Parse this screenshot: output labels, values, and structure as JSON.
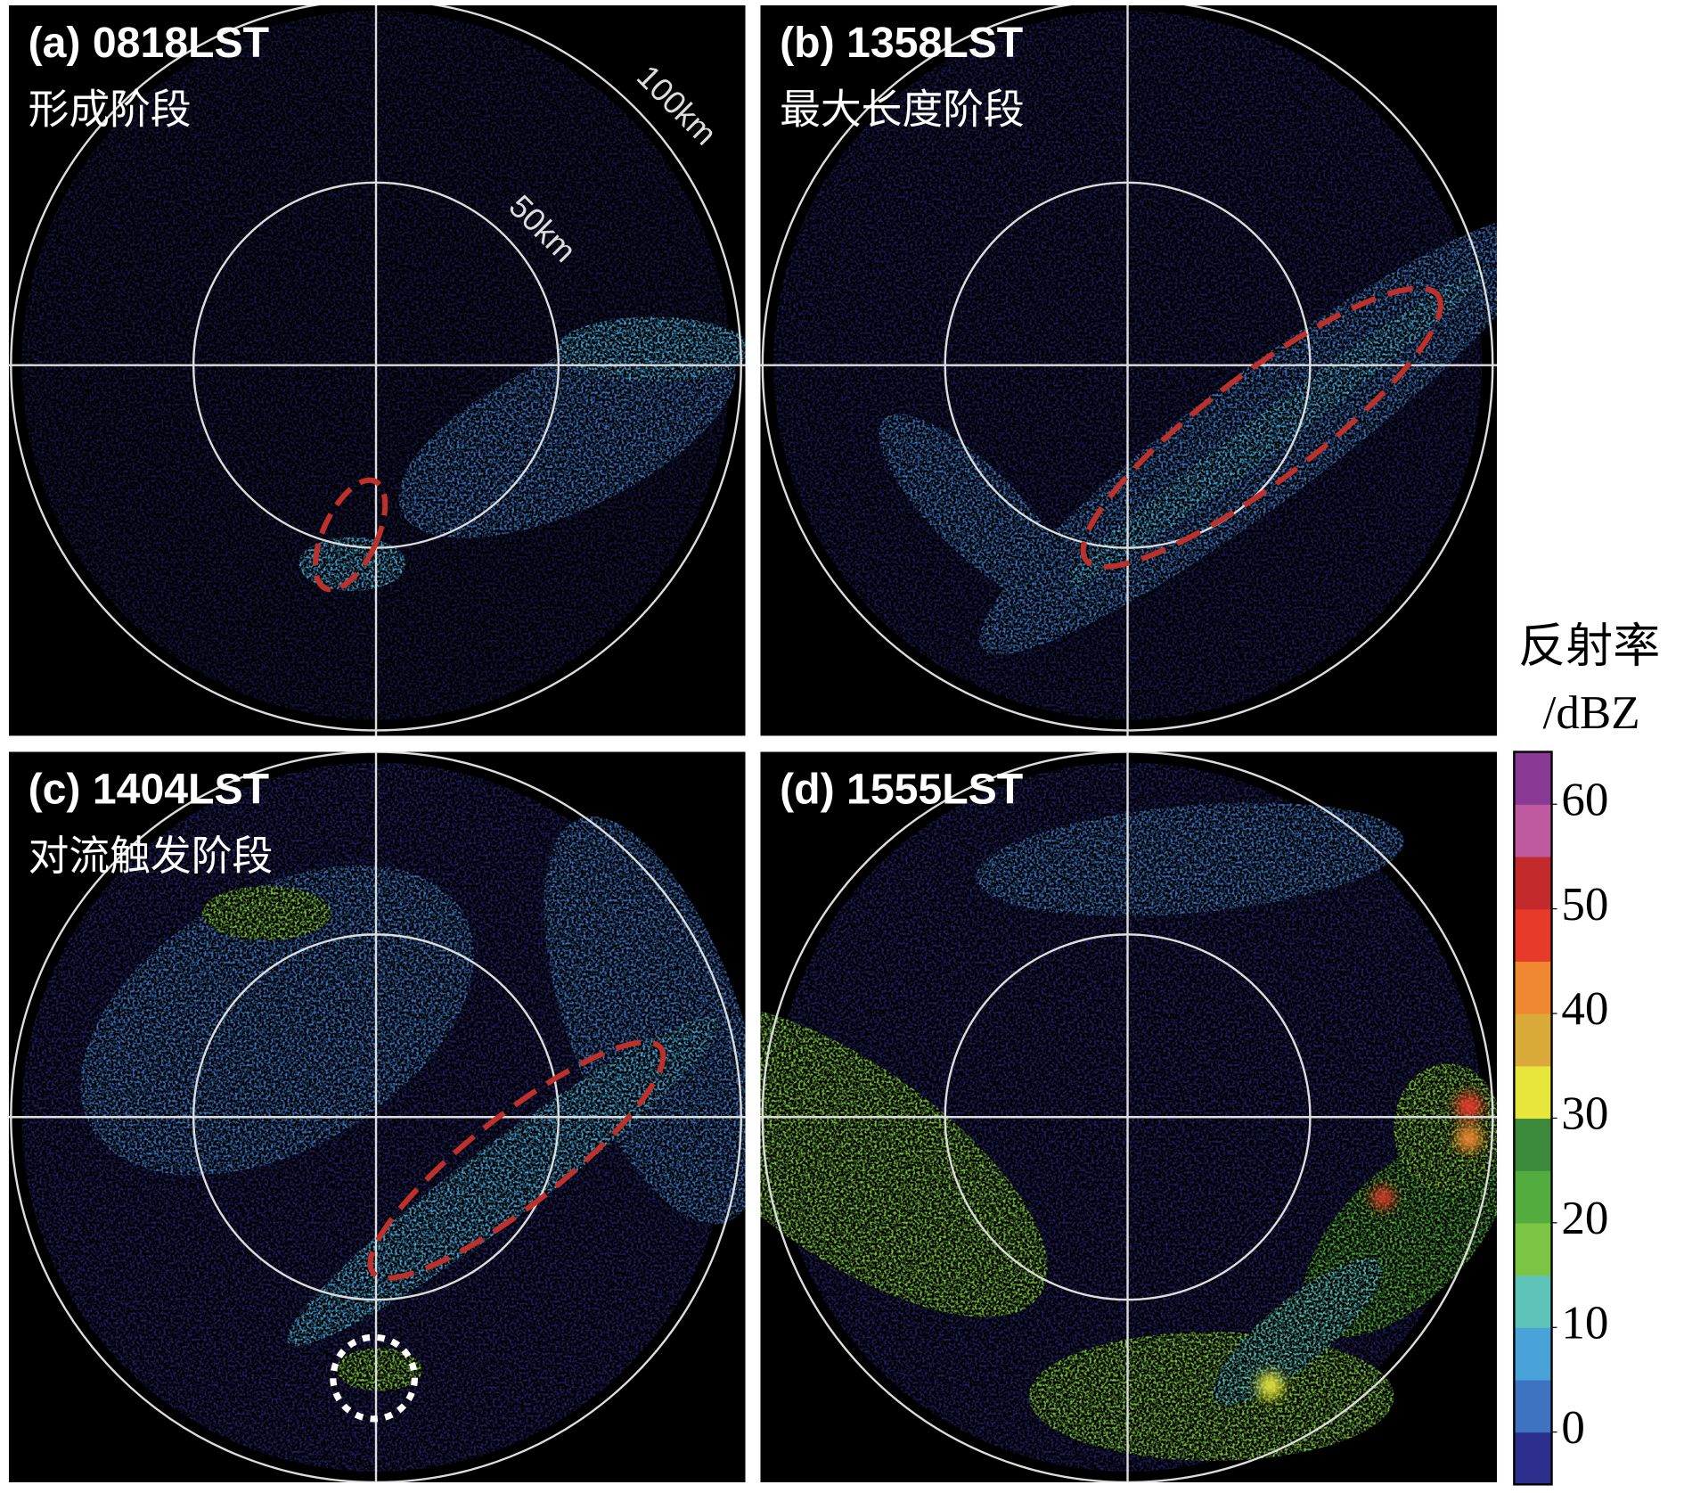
{
  "panels": [
    {
      "label": "(a) 0818LST",
      "stage": "形成阶段"
    },
    {
      "label": "(b) 1358LST",
      "stage": "最大长度阶段"
    },
    {
      "label": "(c) 1404LST",
      "stage": "对流触发阶段"
    },
    {
      "label": "(d) 1555LST"
    }
  ],
  "range_labels": [
    "50km",
    "100km"
  ],
  "colorbar": {
    "title": "反射率",
    "unit": "/dBZ",
    "lim": [
      -5,
      65
    ],
    "ticks": [
      0,
      10,
      20,
      30,
      40,
      50,
      60
    ],
    "colors": [
      "#2d2f8f",
      "#3d73c0",
      "#4aa3d8",
      "#5ec3b8",
      "#7cc444",
      "#52ad3e",
      "#3b8a3b",
      "#e8e63a",
      "#d9aa3a",
      "#ef8830",
      "#e83a2a",
      "#c22a2b",
      "#c05aa0",
      "#8a3a95"
    ]
  }
}
